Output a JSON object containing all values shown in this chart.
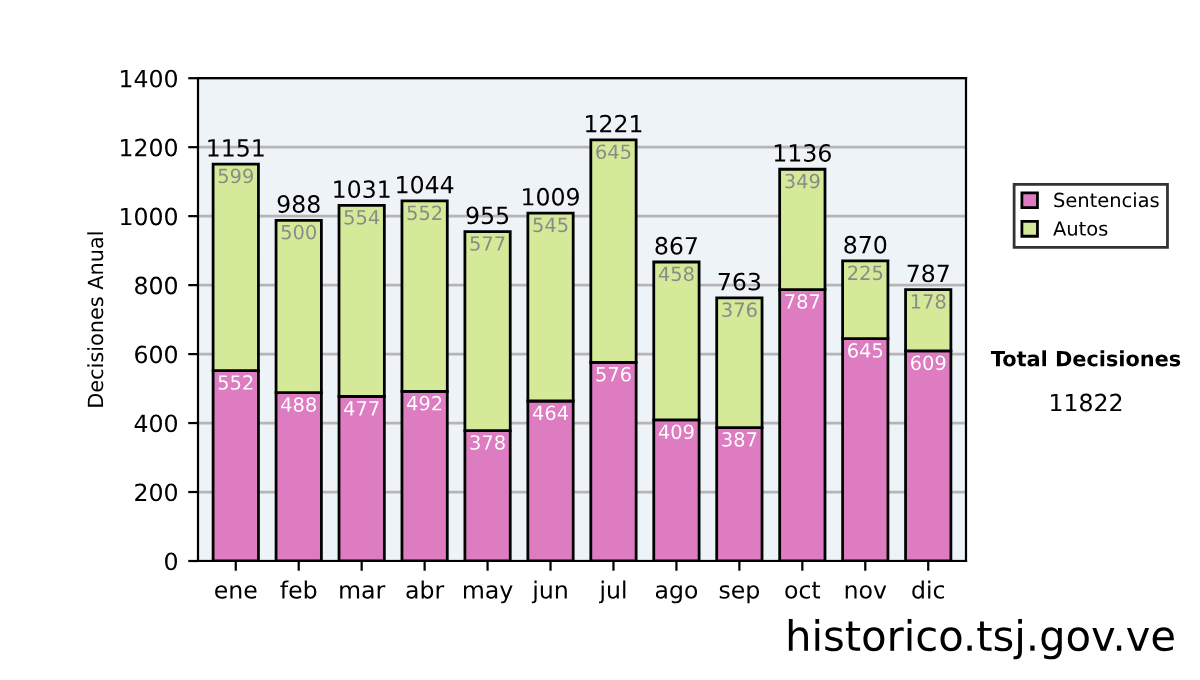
{
  "chart_data": {
    "type": "bar",
    "ylabel": "Decisiones Anual",
    "stacked": true,
    "data_labels": true,
    "legend": "right",
    "grid": "y",
    "categories": [
      "ene",
      "feb",
      "mar",
      "abr",
      "may",
      "jun",
      "jul",
      "ago",
      "sep",
      "oct",
      "nov",
      "dic"
    ],
    "series": [
      {
        "name": "Sentencias",
        "color": "#dd7cc0",
        "values": [
          552,
          488,
          477,
          492,
          378,
          464,
          576,
          409,
          387,
          787,
          645,
          609
        ]
      },
      {
        "name": "Autos",
        "color": "#d4ea98",
        "values": [
          599,
          500,
          554,
          552,
          577,
          545,
          645,
          458,
          376,
          349,
          225,
          178
        ]
      }
    ],
    "totals": [
      "1151",
      "988",
      "1031",
      "1044",
      "955",
      "1009",
      "1221",
      "867",
      "763",
      "1136",
      "870",
      "787"
    ],
    "ylim": [
      0,
      1400
    ],
    "yticks": [
      0,
      200,
      400,
      600,
      800,
      1000,
      1200,
      1400
    ],
    "annotations": [
      "Total Decisiones",
      "11822",
      "historico.tsj.gov.ve"
    ]
  }
}
